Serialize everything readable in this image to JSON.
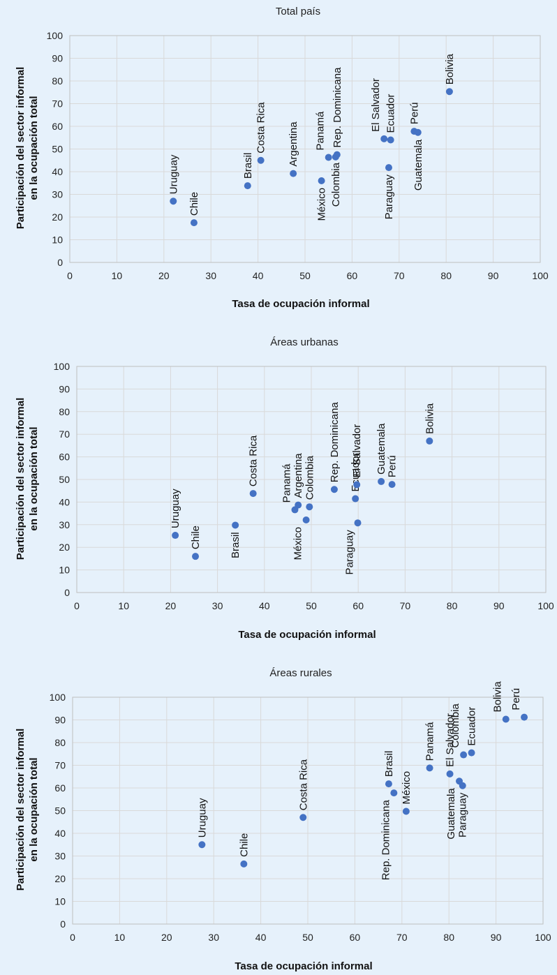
{
  "chart_data": [
    {
      "type": "scatter",
      "title": "Total país",
      "xlabel": "Tasa de ocupación informal",
      "ylabel": [
        "Participación del sector informal",
        "en la ocupación total"
      ],
      "xlim": [
        0,
        100
      ],
      "ylim": [
        0,
        100
      ],
      "xticks": [
        "0",
        "10",
        "20",
        "30",
        "40",
        "50",
        "60",
        "70",
        "80",
        "90",
        "100"
      ],
      "yticks": [
        "0",
        "10",
        "20",
        "30",
        "40",
        "50",
        "60",
        "70",
        "80",
        "90",
        "100"
      ],
      "grid": true,
      "points": [
        {
          "label": "Uruguay",
          "x": 22,
          "y": 27
        },
        {
          "label": "Chile",
          "x": 26.4,
          "y": 17.5
        },
        {
          "label": "Brasil",
          "x": 37.8,
          "y": 33.8
        },
        {
          "label": "Costa Rica",
          "x": 40.6,
          "y": 45
        },
        {
          "label": "Argentina",
          "x": 47.5,
          "y": 39.2
        },
        {
          "label": "México",
          "x": 53.5,
          "y": 36
        },
        {
          "label": "Panamá",
          "x": 55,
          "y": 46.3
        },
        {
          "label": "Colombia",
          "x": 56.5,
          "y": 46.5
        },
        {
          "label": "Rep. Dominicana",
          "x": 56.8,
          "y": 47.5
        },
        {
          "label": "El Salvador",
          "x": 66.8,
          "y": 54.5
        },
        {
          "label": "Ecuador",
          "x": 68.2,
          "y": 54
        },
        {
          "label": "Paraguay",
          "x": 67.8,
          "y": 41.8
        },
        {
          "label": "Perú",
          "x": 73.2,
          "y": 57.8
        },
        {
          "label": "Guatemala",
          "x": 74,
          "y": 57.3
        },
        {
          "label": "Bolivia",
          "x": 80.7,
          "y": 75.3
        }
      ]
    },
    {
      "type": "scatter",
      "title": "Áreas urbanas",
      "xlabel": "Tasa de ocupación informal",
      "ylabel": [
        "Participación del sector informal",
        "en la ocupación total"
      ],
      "xlim": [
        0,
        100
      ],
      "ylim": [
        0,
        100
      ],
      "xticks": [
        "0",
        "10",
        "20",
        "30",
        "40",
        "50",
        "60",
        "70",
        "80",
        "90",
        "100"
      ],
      "yticks": [
        "0",
        "10",
        "20",
        "30",
        "40",
        "50",
        "60",
        "70",
        "80",
        "90",
        "100"
      ],
      "grid": true,
      "points": [
        {
          "label": "Uruguay",
          "x": 21,
          "y": 25.3
        },
        {
          "label": "Chile",
          "x": 25.3,
          "y": 16
        },
        {
          "label": "Brasil",
          "x": 33.8,
          "y": 29.8
        },
        {
          "label": "Costa Rica",
          "x": 37.6,
          "y": 43.8
        },
        {
          "label": "Panamá",
          "x": 46.5,
          "y": 36.6
        },
        {
          "label": "Argentina",
          "x": 47.2,
          "y": 38.7
        },
        {
          "label": "México",
          "x": 48.9,
          "y": 32.1
        },
        {
          "label": "Colombia",
          "x": 49.6,
          "y": 37.9
        },
        {
          "label": "Rep. Dominicana",
          "x": 54.9,
          "y": 45.6
        },
        {
          "label": "Ecuador",
          "x": 59.4,
          "y": 41.5
        },
        {
          "label": "El Salvador",
          "x": 59.7,
          "y": 47.7
        },
        {
          "label": "Paraguay",
          "x": 59.9,
          "y": 30.8
        },
        {
          "label": "Guatemala",
          "x": 64.9,
          "y": 49.1
        },
        {
          "label": "Perú",
          "x": 67.2,
          "y": 47.8
        },
        {
          "label": "Bolivia",
          "x": 75.2,
          "y": 67
        }
      ]
    },
    {
      "type": "scatter",
      "title": "Áreas rurales",
      "xlabel": "Tasa de ocupación informal",
      "ylabel": [
        "Participación del sector informal",
        "en la ocupación total"
      ],
      "xlim": [
        0,
        100
      ],
      "ylim": [
        0,
        100
      ],
      "xticks": [
        "0",
        "10",
        "20",
        "30",
        "40",
        "50",
        "60",
        "70",
        "80",
        "90",
        "100"
      ],
      "yticks": [
        "0",
        "10",
        "20",
        "30",
        "40",
        "50",
        "60",
        "70",
        "80",
        "90",
        "100"
      ],
      "grid": true,
      "points": [
        {
          "label": "Uruguay",
          "x": 27.5,
          "y": 35
        },
        {
          "label": "Chile",
          "x": 36.4,
          "y": 26.5
        },
        {
          "label": "Costa Rica",
          "x": 49,
          "y": 47
        },
        {
          "label": "Brasil",
          "x": 67.2,
          "y": 61.8
        },
        {
          "label": "Rep. Dominicana",
          "x": 68.3,
          "y": 57.8
        },
        {
          "label": "México",
          "x": 70.9,
          "y": 49.7
        },
        {
          "label": "Panamá",
          "x": 75.9,
          "y": 68.8
        },
        {
          "label": "El Salvador",
          "x": 80.2,
          "y": 66.2
        },
        {
          "label": "Guatemala",
          "x": 82.2,
          "y": 63
        },
        {
          "label": "Paraguay",
          "x": 82.9,
          "y": 61
        },
        {
          "label": "Colombia",
          "x": 83.1,
          "y": 74.6
        },
        {
          "label": "Ecuador",
          "x": 84.8,
          "y": 75.5
        },
        {
          "label": "Bolivia",
          "x": 92.1,
          "y": 90.3
        },
        {
          "label": "Perú",
          "x": 96,
          "y": 91.2
        }
      ]
    }
  ],
  "colors": {
    "marker": "#4472c4",
    "grid": "#d9d9d9",
    "axis": "#bfbfbf",
    "background": "#e6f1fb"
  }
}
